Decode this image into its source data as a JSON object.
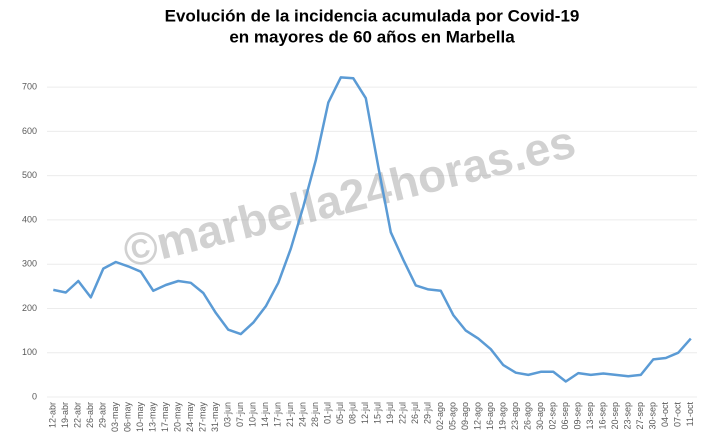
{
  "chart_data": {
    "type": "line",
    "title": [
      "Evolución de la incidencia acumulada por Covid-19",
      "en mayores de 60 años en Marbella"
    ],
    "watermark": "©marbella24horas.es",
    "categories": [
      "12-abr",
      "19-abr",
      "22-abr",
      "26-abr",
      "29-abr",
      "03-may",
      "06-may",
      "10-may",
      "13-may",
      "17-may",
      "20-may",
      "24-may",
      "27-may",
      "31-may",
      "03-jun",
      "07-jun",
      "10-jun",
      "14-jun",
      "17-jun",
      "21-jun",
      "24-jun",
      "28-jun",
      "01-jul",
      "05-jul",
      "08-jul",
      "12-jul",
      "15-jul",
      "19-jul",
      "22-jul",
      "26-jul",
      "29-jul",
      "02-ago",
      "05-ago",
      "09-ago",
      "12-ago",
      "16-ago",
      "19-ago",
      "23-ago",
      "26-ago",
      "30-ago",
      "02-sep",
      "06-sep",
      "09-sep",
      "13-sep",
      "16-sep",
      "20-sep",
      "23-sep",
      "27-sep",
      "30-sep",
      "04-oct",
      "07-oct",
      "11-oct"
    ],
    "values": [
      242,
      236,
      262,
      225,
      290,
      305,
      295,
      283,
      240,
      253,
      262,
      258,
      235,
      190,
      152,
      142,
      168,
      205,
      258,
      335,
      430,
      535,
      665,
      722,
      720,
      675,
      520,
      372,
      310,
      252,
      243,
      240,
      185,
      150,
      132,
      108,
      72,
      55,
      50,
      57,
      57,
      35,
      54,
      50,
      53,
      50,
      47,
      50,
      85,
      88,
      100,
      132
    ],
    "color": "#5b9bd5",
    "ylim": [
      0,
      750
    ],
    "yticks": [
      0,
      100,
      200,
      300,
      400,
      500,
      600,
      700
    ],
    "grid": true
  }
}
